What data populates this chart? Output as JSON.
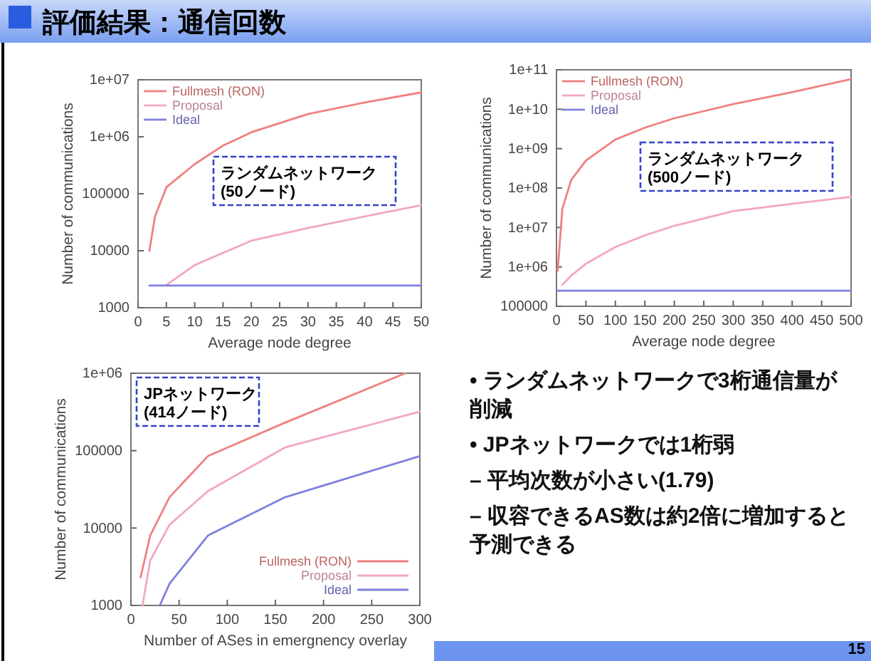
{
  "chart_data": [
    {
      "type": "line",
      "xlabel": "Average node degree",
      "ylabel": "Number of communications",
      "log": true,
      "xlim": [
        0,
        50
      ],
      "xticks": [
        0,
        5,
        10,
        15,
        20,
        25,
        30,
        35,
        40,
        45,
        50
      ],
      "ylim": [
        1000,
        10000000
      ],
      "yticks": [
        1000,
        10000,
        100000,
        {
          "value": 1000000,
          "label": "1e+06"
        },
        {
          "value": 10000000,
          "label": "1e+07"
        }
      ],
      "legend": "top left",
      "annotations": [
        "ランダムネットワーク\n(50ノード)"
      ],
      "series": [
        {
          "name": "Fullmesh (RON)",
          "color": "#f08080",
          "x": [
            2,
            3,
            5,
            10,
            15,
            20,
            30,
            40,
            50
          ],
          "values": [
            10000,
            40000,
            130000,
            330000,
            700000,
            1200000,
            2500000,
            4000000,
            6000000
          ]
        },
        {
          "name": "Proposal",
          "color": "#f2a6c8",
          "x": [
            5,
            10,
            20,
            30,
            40,
            50
          ],
          "values": [
            2500,
            5600,
            15000,
            25000,
            40000,
            63000
          ]
        },
        {
          "name": "Ideal",
          "color": "#8080e0",
          "x": [
            2,
            50
          ],
          "values": [
            2450,
            2450
          ]
        }
      ]
    },
    {
      "type": "line",
      "xlabel": "Average node degree",
      "ylabel": "Number of communications",
      "log": true,
      "xlim": [
        0,
        500
      ],
      "xticks": [
        0,
        50,
        100,
        150,
        200,
        250,
        300,
        350,
        400,
        450,
        500
      ],
      "ylim": [
        100000,
        100000000000
      ],
      "yticks": [
        100000,
        {
          "value": 1000000,
          "label": "1e+06"
        },
        {
          "value": 10000000,
          "label": "1e+07"
        },
        {
          "value": 100000000,
          "label": "1e+08"
        },
        {
          "value": 1000000000,
          "label": "1e+09"
        },
        {
          "value": 10000000000,
          "label": "1e+10"
        },
        {
          "value": 100000000000,
          "label": "1e+11"
        }
      ],
      "legend": "top left",
      "annotations": [
        "ランダムネットワーク\n(500ノード)"
      ],
      "series": [
        {
          "name": "Fullmesh (RON)",
          "color": "#f08080",
          "x": [
            2,
            10,
            25,
            50,
            100,
            150,
            200,
            300,
            400,
            500
          ],
          "values": [
            800000,
            30000000,
            160000000,
            500000000,
            1700000000,
            3400000000,
            5900000000,
            13500000000,
            27000000000,
            58000000000
          ]
        },
        {
          "name": "Proposal",
          "color": "#f2a6c8",
          "x": [
            10,
            25,
            50,
            100,
            150,
            200,
            300,
            400,
            500
          ],
          "values": [
            350000,
            600000,
            1200000,
            3200000,
            6300000,
            11000000,
            26000000,
            40000000,
            60000000
          ]
        },
        {
          "name": "Ideal",
          "color": "#8080e0",
          "x": [
            2,
            500
          ],
          "values": [
            249500,
            249500
          ]
        }
      ]
    },
    {
      "type": "line",
      "xlabel": "Number of ASes in emergnency overlay",
      "ylabel": "Number of communications",
      "log": true,
      "xlim": [
        0,
        300
      ],
      "xticks": [
        0,
        50,
        100,
        150,
        200,
        250,
        300
      ],
      "ylim": [
        1000,
        1000000
      ],
      "yticks": [
        1000,
        10000,
        100000,
        {
          "value": 1000000,
          "label": "1e+06"
        }
      ],
      "legend": "bottom right",
      "annotations": [
        "JPネットワーク\n(414ノード)"
      ],
      "series": [
        {
          "name": "Fullmesh (RON)",
          "color": "#f08080",
          "x": [
            10,
            20,
            40,
            80,
            160,
            285
          ],
          "values": [
            2300,
            8000,
            25000,
            85000,
            230000,
            1000000
          ]
        },
        {
          "name": "Proposal",
          "color": "#f2a6c8",
          "x": [
            12,
            20,
            40,
            80,
            160,
            300
          ],
          "values": [
            1000,
            3800,
            11000,
            30000,
            110000,
            320000
          ]
        },
        {
          "name": "Ideal",
          "color": "#8080e0",
          "x": [
            30,
            40,
            80,
            160,
            300
          ],
          "values": [
            1000,
            1900,
            8000,
            25000,
            85000
          ]
        }
      ]
    },
    {
      "type": "other",
      "title": "評価結果：通信回数",
      "annotations": [
        "• ランダムネットワークで3桁通信量が削減",
        "• JPネットワークでは1桁弱",
        "– 平均次数が小さい(1.79)",
        "– 収容できるAS数は約2倍に増加すると予測できる",
        "15"
      ]
    }
  ]
}
